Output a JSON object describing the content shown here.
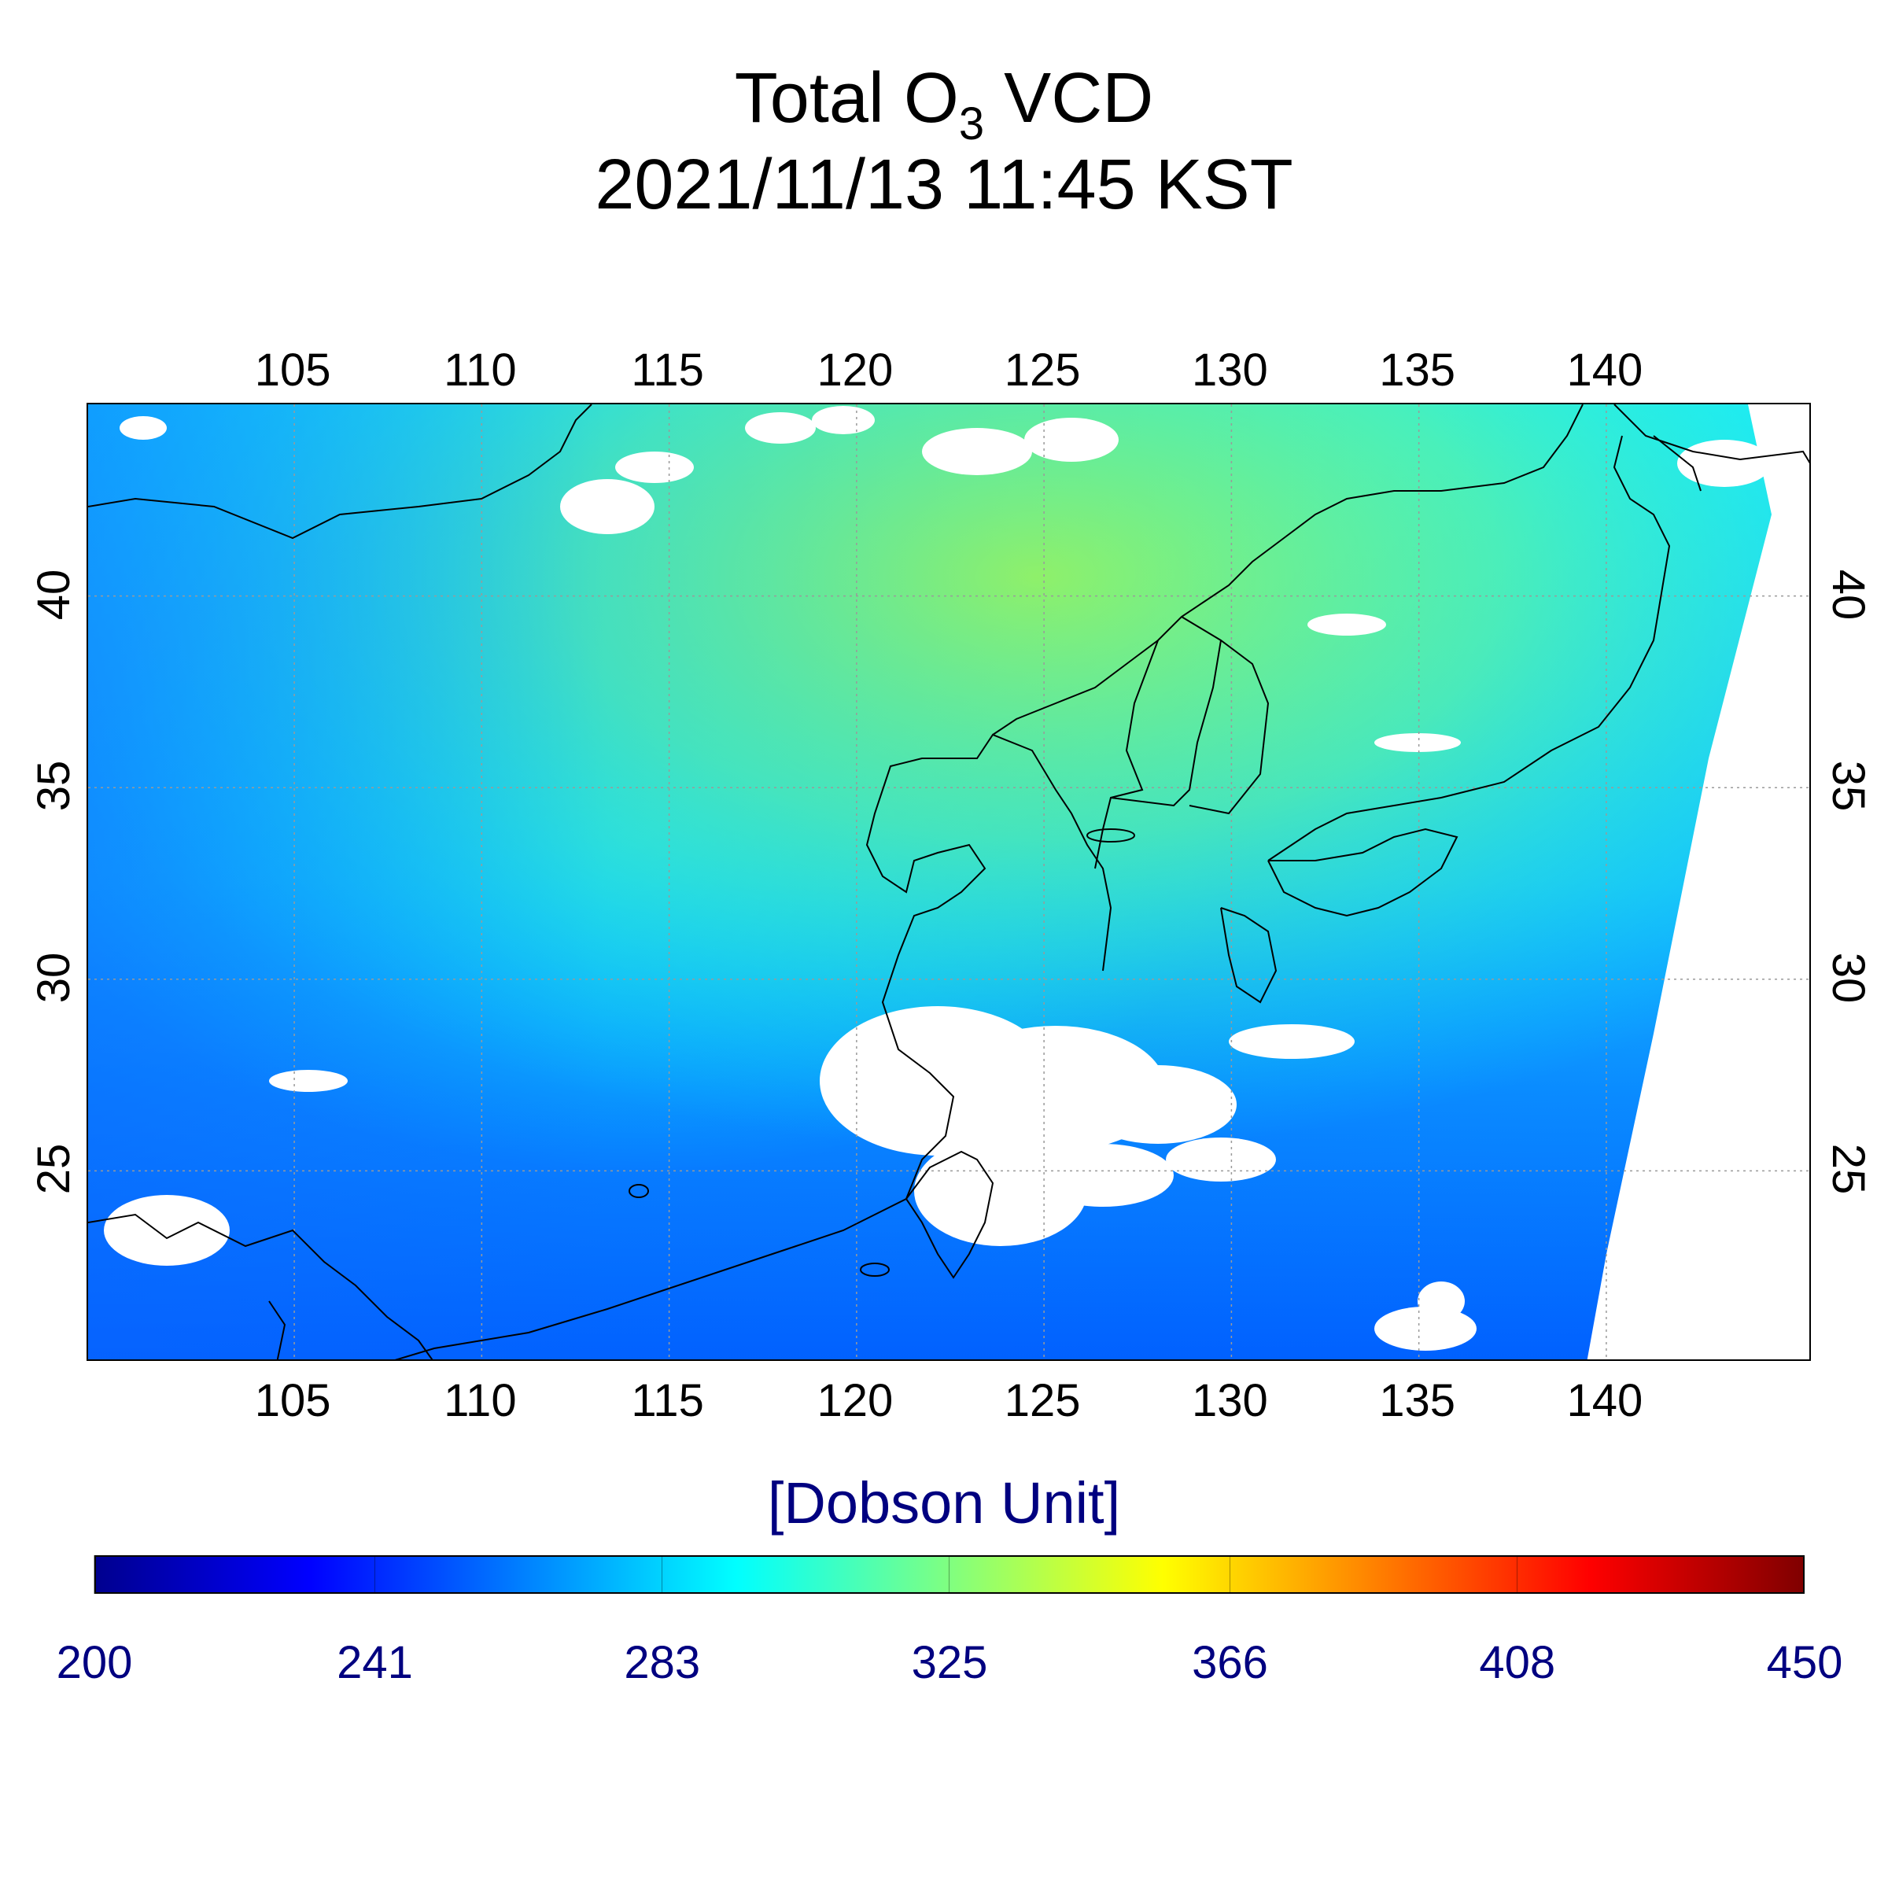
{
  "title": {
    "line1_prefix": "Total O",
    "line1_subscript": "3",
    "line1_suffix": " VCD",
    "line2": "2021/11/13 11:45 KST"
  },
  "map": {
    "lon_ticks": [
      "105",
      "110",
      "115",
      "120",
      "125",
      "130",
      "135",
      "140"
    ],
    "lat_ticks": [
      "40",
      "35",
      "30",
      "25"
    ],
    "lon_range": [
      99.5,
      145.5
    ],
    "lat_range": [
      20,
      45
    ],
    "frame_color": "#000000",
    "gridline_color": "#9a9a9a",
    "no_data_color": "#ffffff"
  },
  "colorbar": {
    "unit_label": "[Dobson Unit]",
    "ticks": [
      "200",
      "241",
      "283",
      "325",
      "366",
      "408",
      "450"
    ],
    "range": [
      200,
      450
    ],
    "colormap": "jet",
    "label_color": "#000080"
  }
}
